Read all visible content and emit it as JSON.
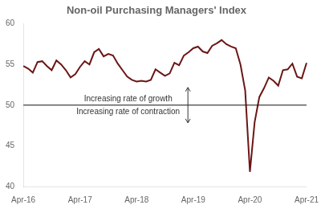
{
  "chart_data": {
    "type": "line",
    "title": "Non-oil Purchasing Managers' Index",
    "categories": [
      "Apr-16",
      null,
      null,
      null,
      null,
      null,
      null,
      null,
      null,
      null,
      null,
      null,
      "Apr-17",
      null,
      null,
      null,
      null,
      null,
      null,
      null,
      null,
      null,
      null,
      null,
      "Apr-18",
      null,
      null,
      null,
      null,
      null,
      null,
      null,
      null,
      null,
      null,
      null,
      "Apr-19",
      null,
      null,
      null,
      null,
      null,
      null,
      null,
      null,
      null,
      null,
      null,
      "Apr-20",
      null,
      null,
      null,
      null,
      null,
      null,
      null,
      null,
      null,
      null,
      null,
      "Apr-21"
    ],
    "values": [
      54.8,
      54.5,
      54.0,
      55.3,
      55.4,
      54.8,
      54.3,
      55.5,
      55.0,
      54.3,
      53.4,
      53.8,
      54.7,
      55.4,
      55.0,
      56.5,
      56.9,
      56.0,
      56.3,
      56.1,
      55.1,
      54.3,
      53.5,
      53.1,
      52.9,
      53.0,
      52.9,
      53.1,
      54.4,
      54.0,
      53.6,
      53.9,
      55.2,
      54.9,
      56.1,
      56.5,
      57.0,
      57.2,
      56.6,
      56.4,
      57.3,
      57.6,
      58.0,
      57.5,
      57.2,
      57.0,
      55.0,
      51.8,
      41.8,
      47.9,
      51.0,
      52.1,
      53.4,
      53.0,
      52.4,
      54.3,
      54.4,
      55.1,
      53.5,
      53.3,
      55.2
    ],
    "color": "#6b1515",
    "ylim": [
      40,
      60
    ],
    "yticks": [
      40,
      45,
      50,
      55,
      60
    ],
    "grid": false,
    "reference_line": {
      "y": 50,
      "color": "#111111"
    },
    "annotations": [
      "Increasing rate of growth",
      "Increasing rate of contraction"
    ]
  }
}
